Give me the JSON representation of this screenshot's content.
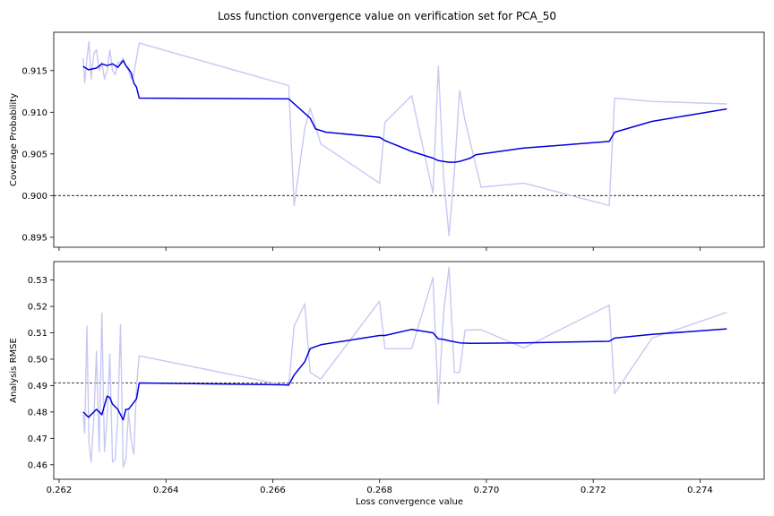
{
  "figure": {
    "title": "Loss function convergence value on verification set for PCA_50",
    "xlabel": "Loss convergence value"
  },
  "colors": {
    "raw": "#c8c8f4",
    "smoothed": "#0000dd",
    "reference": "#000000"
  },
  "chart_data": [
    {
      "type": "line",
      "title": "Loss function convergence value on verification set for PCA_50",
      "xlabel": "",
      "ylabel": "Coverage Probability",
      "xlim": [
        0.2619,
        0.2752
      ],
      "ylim": [
        0.8938,
        0.9196
      ],
      "xticks": [
        "0.262",
        "0.264",
        "0.266",
        "0.268",
        "0.270",
        "0.272",
        "0.274"
      ],
      "yticks": [
        "0.895",
        "0.900",
        "0.905",
        "0.910",
        "0.915"
      ],
      "reference_line": 0.9,
      "grid": false,
      "series": [
        {
          "style": "raw",
          "x": [
            0.26245,
            0.26248,
            0.26252,
            0.26256,
            0.2626,
            0.26265,
            0.2627,
            0.26275,
            0.2628,
            0.26285,
            0.2629,
            0.26295,
            0.263,
            0.26305,
            0.2631,
            0.26315,
            0.2632,
            0.26325,
            0.2633,
            0.26335,
            0.2634,
            0.26345,
            0.2635,
            0.2663,
            0.2664,
            0.2666,
            0.2667,
            0.2669,
            0.268,
            0.2681,
            0.2686,
            0.269,
            0.2691,
            0.2692,
            0.2693,
            0.2694,
            0.2695,
            0.2696,
            0.2699,
            0.2707,
            0.2723,
            0.2724,
            0.2731,
            0.2745
          ],
          "y": [
            0.9165,
            0.9135,
            0.9165,
            0.9185,
            0.914,
            0.917,
            0.9175,
            0.915,
            0.916,
            0.914,
            0.915,
            0.9175,
            0.915,
            0.9145,
            0.916,
            0.916,
            0.9165,
            0.9155,
            0.915,
            0.914,
            0.9145,
            0.9165,
            0.9183,
            0.9132,
            0.8988,
            0.908,
            0.9105,
            0.9062,
            0.9015,
            0.9088,
            0.912,
            0.9003,
            0.9155,
            0.902,
            0.8952,
            0.9028,
            0.9126,
            0.909,
            0.901,
            0.9015,
            0.8988,
            0.9117,
            0.9113,
            0.911
          ]
        },
        {
          "style": "smoothed",
          "x": [
            0.26245,
            0.26255,
            0.2627,
            0.2628,
            0.2629,
            0.263,
            0.2631,
            0.2632,
            0.26325,
            0.2633,
            0.26335,
            0.2634,
            0.26345,
            0.2635,
            0.2663,
            0.2667,
            0.2668,
            0.267,
            0.268,
            0.2681,
            0.2686,
            0.269,
            0.2691,
            0.2692,
            0.2693,
            0.2694,
            0.2695,
            0.2697,
            0.2698,
            0.2707,
            0.2723,
            0.2724,
            0.2731,
            0.2745
          ],
          "y": [
            0.9155,
            0.9151,
            0.9153,
            0.9158,
            0.9156,
            0.9158,
            0.9154,
            0.9162,
            0.9156,
            0.9152,
            0.9147,
            0.9135,
            0.913,
            0.9117,
            0.9116,
            0.9093,
            0.908,
            0.9076,
            0.907,
            0.9066,
            0.9053,
            0.9045,
            0.9042,
            0.9041,
            0.904,
            0.904,
            0.9041,
            0.9045,
            0.9049,
            0.9057,
            0.9065,
            0.9076,
            0.9089,
            0.9104
          ]
        }
      ]
    },
    {
      "type": "line",
      "title": "",
      "xlabel": "Loss convergence value",
      "ylabel": "Analysis RMSE",
      "xlim": [
        0.2619,
        0.2752
      ],
      "ylim": [
        0.4545,
        0.537
      ],
      "xticks": [
        "0.262",
        "0.264",
        "0.266",
        "0.268",
        "0.270",
        "0.272",
        "0.274"
      ],
      "yticks": [
        "0.46",
        "0.47",
        "0.48",
        "0.49",
        "0.50",
        "0.51",
        "0.52",
        "0.53"
      ],
      "reference_line": 0.491,
      "grid": false,
      "series": [
        {
          "style": "raw",
          "x": [
            0.26245,
            0.26248,
            0.26252,
            0.26256,
            0.2626,
            0.26265,
            0.2627,
            0.26275,
            0.2628,
            0.26285,
            0.2629,
            0.26295,
            0.263,
            0.26305,
            0.2631,
            0.26315,
            0.2632,
            0.26325,
            0.2633,
            0.26335,
            0.2634,
            0.26345,
            0.2635,
            0.2663,
            0.2664,
            0.2666,
            0.2667,
            0.2669,
            0.268,
            0.2681,
            0.2686,
            0.269,
            0.2691,
            0.2692,
            0.2693,
            0.2694,
            0.2695,
            0.2696,
            0.2699,
            0.2707,
            0.2723,
            0.2724,
            0.2731,
            0.2745
          ],
          "y": [
            0.479,
            0.472,
            0.5125,
            0.468,
            0.461,
            0.477,
            0.503,
            0.465,
            0.5175,
            0.465,
            0.478,
            0.502,
            0.461,
            0.462,
            0.478,
            0.513,
            0.459,
            0.462,
            0.48,
            0.469,
            0.464,
            0.49,
            0.5013,
            0.4898,
            0.5125,
            0.521,
            0.495,
            0.4925,
            0.522,
            0.504,
            0.504,
            0.531,
            0.483,
            0.518,
            0.5348,
            0.495,
            0.495,
            0.511,
            0.5112,
            0.5043,
            0.5205,
            0.487,
            0.508,
            0.5178
          ]
        },
        {
          "style": "smoothed",
          "x": [
            0.26245,
            0.26255,
            0.2627,
            0.2628,
            0.2629,
            0.26295,
            0.263,
            0.2631,
            0.2632,
            0.26325,
            0.2633,
            0.26345,
            0.2635,
            0.2663,
            0.2664,
            0.2666,
            0.2667,
            0.2669,
            0.268,
            0.2681,
            0.2686,
            0.269,
            0.2691,
            0.2692,
            0.2693,
            0.2695,
            0.2697,
            0.2707,
            0.2723,
            0.2724,
            0.2731,
            0.2745
          ],
          "y": [
            0.48,
            0.478,
            0.481,
            0.479,
            0.486,
            0.4855,
            0.483,
            0.481,
            0.477,
            0.481,
            0.481,
            0.485,
            0.491,
            0.4903,
            0.494,
            0.499,
            0.504,
            0.5055,
            0.509,
            0.509,
            0.5113,
            0.51,
            0.5077,
            0.5075,
            0.507,
            0.5062,
            0.506,
            0.5062,
            0.5068,
            0.508,
            0.5094,
            0.5115
          ]
        }
      ]
    }
  ]
}
